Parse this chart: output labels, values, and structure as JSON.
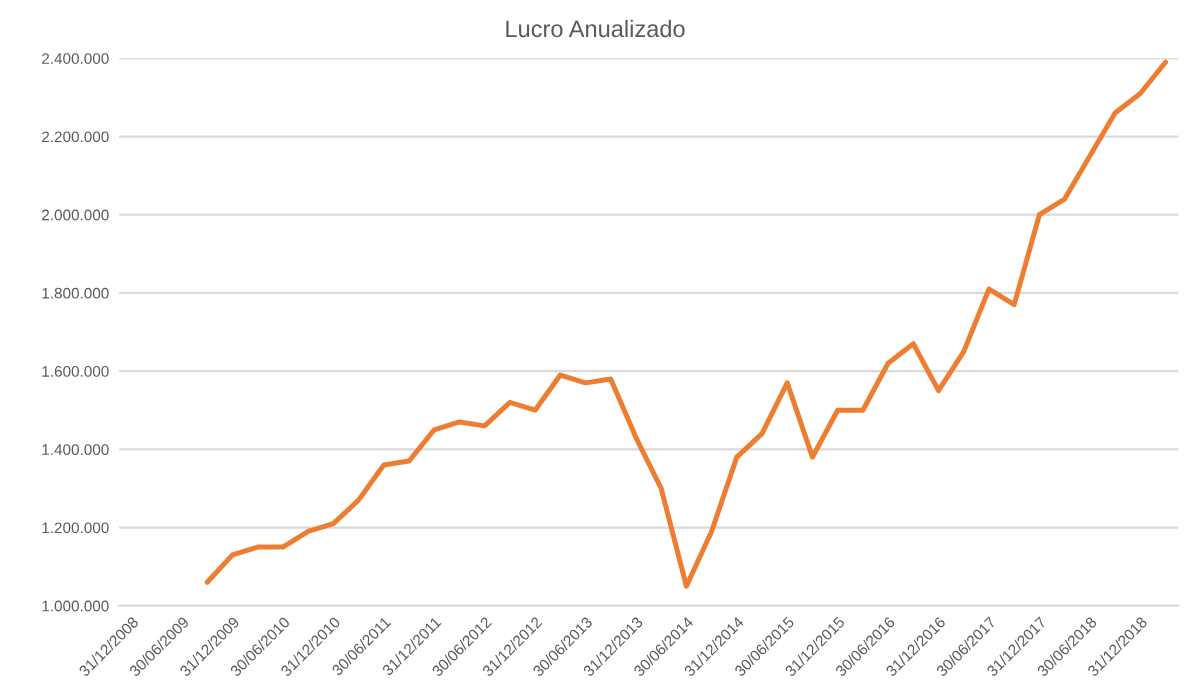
{
  "chart_data": {
    "type": "line",
    "title": "Lucro Anualizado",
    "categories": [
      "31/12/2008",
      null,
      "30/06/2009",
      null,
      "31/12/2009",
      null,
      "30/06/2010",
      null,
      "31/12/2010",
      null,
      "30/06/2011",
      null,
      "31/12/2011",
      null,
      "30/06/2012",
      null,
      "31/12/2012",
      null,
      "30/06/2013",
      null,
      "31/12/2013",
      null,
      "30/06/2014",
      null,
      "31/12/2014",
      null,
      "30/06/2015",
      null,
      "31/12/2015",
      null,
      "30/06/2016",
      null,
      "31/12/2016",
      null,
      "30/06/2017",
      null,
      "31/12/2017",
      null,
      "30/06/2018",
      null,
      "31/12/2018",
      null
    ],
    "series": [
      {
        "color": "#ed7d31",
        "values": [
          null,
          null,
          null,
          1060000,
          1130000,
          1150000,
          1150000,
          1190000,
          1210000,
          1270000,
          1360000,
          1370000,
          1450000,
          1470000,
          1460000,
          1520000,
          1500000,
          1590000,
          1570000,
          1580000,
          1430000,
          1300000,
          1050000,
          1190000,
          1380000,
          1440000,
          1570000,
          1380000,
          1500000,
          1500000,
          1620000,
          1670000,
          1550000,
          1650000,
          1810000,
          1770000,
          2000000,
          2040000,
          2150000,
          2260000,
          2310000,
          2390000
        ]
      }
    ],
    "ylim": [
      1000000,
      2400000
    ],
    "yticks": [
      {
        "value": 1000000,
        "label": "1.000.000"
      },
      {
        "value": 1200000,
        "label": "1.200.000"
      },
      {
        "value": 1400000,
        "label": "1.400.000"
      },
      {
        "value": 1600000,
        "label": "1.600.000"
      },
      {
        "value": 1800000,
        "label": "1.800.000"
      },
      {
        "value": 2000000,
        "label": "2.000.000"
      },
      {
        "value": 2200000,
        "label": "2.200.000"
      },
      {
        "value": 2400000,
        "label": "2.400.000"
      }
    ],
    "grid": "y",
    "marker": "none",
    "line_style": "solid"
  }
}
